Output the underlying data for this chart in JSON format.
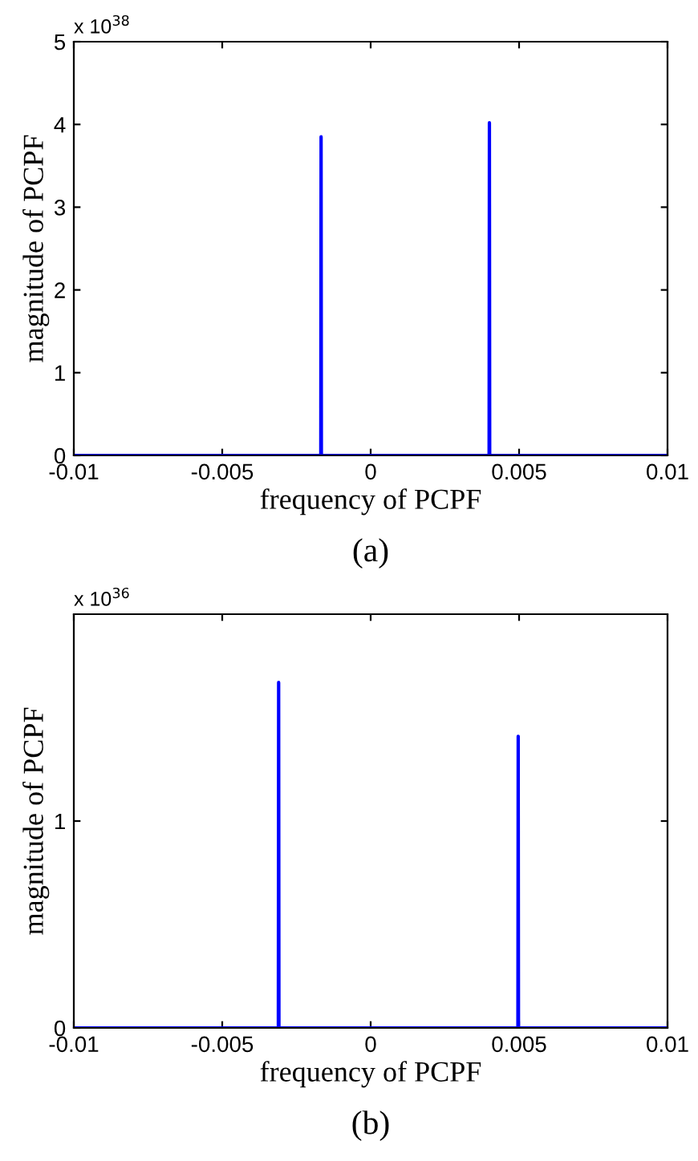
{
  "chart_data": [
    {
      "type": "line",
      "xlabel": "frequency of PCPF",
      "ylabel": "magnitude of PCPF",
      "series": [
        {
          "color": "#0000ff",
          "x": [
            -0.01,
            -0.00168,
            -0.00167,
            -0.00166,
            0.00399,
            0.004,
            0.00401,
            0.01
          ],
          "values": [
            0,
            0,
            3.85,
            0,
            0,
            4.02,
            0,
            0
          ]
        }
      ],
      "xlim": [
        -0.01,
        0.01
      ],
      "xticks": [
        -0.01,
        -0.005,
        0,
        0.005,
        0.01
      ],
      "ylim": [
        0,
        5
      ],
      "yticks": [
        0,
        1,
        2,
        3,
        4,
        5
      ],
      "annotations": [
        "x 10$^{38}$",
        "(a)"
      ],
      "grid": false,
      "legend": false
    },
    {
      "type": "line",
      "xlabel": "frequency of PCPF",
      "ylabel": "magnitude of PCPF",
      "series": [
        {
          "color": "#0000ff",
          "x": [
            -0.01,
            -0.00311,
            -0.0031,
            -0.00309,
            0.00496,
            0.00497,
            0.00498,
            0.01
          ],
          "values": [
            0,
            0,
            1.67,
            0,
            0,
            1.41,
            0,
            0
          ]
        }
      ],
      "xlim": [
        -0.01,
        0.01
      ],
      "xticks": [
        -0.01,
        -0.005,
        0,
        0.005,
        0.01
      ],
      "ylim": [
        0,
        2
      ],
      "yticks": [
        0,
        1
      ],
      "annotations": [
        "x 10$^{36}$",
        "(b)"
      ],
      "grid": false,
      "legend": false
    }
  ]
}
